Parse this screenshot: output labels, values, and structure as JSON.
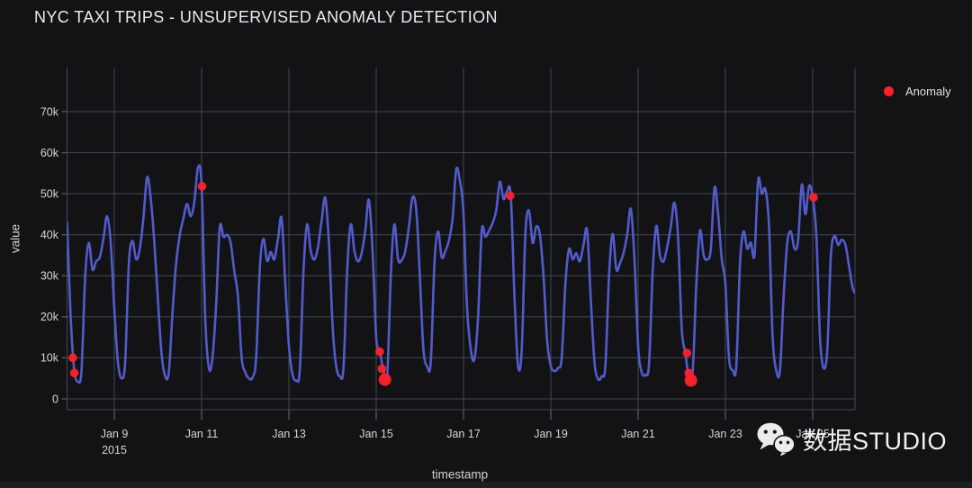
{
  "header": {
    "title": "NYC TAXI TRIPS - UNSUPERVISED ANOMALY DETECTION"
  },
  "legend": {
    "position": "top-right",
    "items": [
      {
        "label": "Anomaly",
        "color": "#ff2127",
        "marker": "circle"
      }
    ]
  },
  "axes": {
    "x_title": "timestamp",
    "y_title": "value"
  },
  "watermark": {
    "icon": "wechat-icon",
    "text": "数据STUDIO"
  },
  "chart_data": {
    "type": "line",
    "title": "NYC TAXI TRIPS - UNSUPERVISED ANOMALY DETECTION",
    "xlabel": "timestamp",
    "ylabel": "value",
    "x_unit": "day of January 2015 (fractional part = time of day)",
    "y_unit": "taxi trips per interval",
    "x_range": [
      7.92,
      26.0
    ],
    "y_range": [
      -2600,
      80800
    ],
    "grid": true,
    "legend_position": "top-right",
    "line_color": "#525bcb",
    "anomaly_color": "#ff2127",
    "grid_color": "#3e4a57",
    "x_ticks": [
      {
        "value": 9,
        "label": "Jan 9",
        "sublabel": "2015"
      },
      {
        "value": 11,
        "label": "Jan 11"
      },
      {
        "value": 13,
        "label": "Jan 13"
      },
      {
        "value": 15,
        "label": "Jan 15"
      },
      {
        "value": 17,
        "label": "Jan 17"
      },
      {
        "value": 19,
        "label": "Jan 19"
      },
      {
        "value": 21,
        "label": "Jan 21"
      },
      {
        "value": 23,
        "label": "Jan 23"
      },
      {
        "value": 25,
        "label": "Jan 25"
      }
    ],
    "y_ticks": [
      {
        "value": 0,
        "label": "0"
      },
      {
        "value": 10000,
        "label": "10k"
      },
      {
        "value": 20000,
        "label": "20k"
      },
      {
        "value": 30000,
        "label": "30k"
      },
      {
        "value": 40000,
        "label": "40k"
      },
      {
        "value": 50000,
        "label": "50k"
      },
      {
        "value": 60000,
        "label": "60k"
      },
      {
        "value": 70000,
        "label": "70k"
      }
    ],
    "series": [
      {
        "name": "value",
        "color": "#525bcb",
        "points": [
          [
            7.917,
            43000
          ],
          [
            8.0,
            20000
          ],
          [
            8.083,
            7000
          ],
          [
            8.167,
            4200
          ],
          [
            8.25,
            7000
          ],
          [
            8.333,
            30000
          ],
          [
            8.417,
            38000
          ],
          [
            8.5,
            31500
          ],
          [
            8.583,
            33500
          ],
          [
            8.667,
            34500
          ],
          [
            8.75,
            39000
          ],
          [
            8.833,
            44500
          ],
          [
            8.917,
            38000
          ],
          [
            9.0,
            22000
          ],
          [
            9.083,
            9000
          ],
          [
            9.167,
            5000
          ],
          [
            9.25,
            9000
          ],
          [
            9.333,
            33000
          ],
          [
            9.417,
            38500
          ],
          [
            9.5,
            34000
          ],
          [
            9.583,
            36500
          ],
          [
            9.667,
            44000
          ],
          [
            9.75,
            54000
          ],
          [
            9.833,
            49000
          ],
          [
            9.917,
            38000
          ],
          [
            10.0,
            24000
          ],
          [
            10.083,
            11000
          ],
          [
            10.167,
            5500
          ],
          [
            10.25,
            6500
          ],
          [
            10.333,
            21000
          ],
          [
            10.417,
            33000
          ],
          [
            10.5,
            40000
          ],
          [
            10.583,
            44000
          ],
          [
            10.667,
            47500
          ],
          [
            10.75,
            44500
          ],
          [
            10.833,
            48000
          ],
          [
            10.917,
            56400
          ],
          [
            11.0,
            52000
          ],
          [
            11.083,
            20000
          ],
          [
            11.167,
            7500
          ],
          [
            11.25,
            10000
          ],
          [
            11.333,
            23000
          ],
          [
            11.417,
            41800
          ],
          [
            11.5,
            39500
          ],
          [
            11.583,
            40000
          ],
          [
            11.667,
            38000
          ],
          [
            11.75,
            31000
          ],
          [
            11.833,
            25000
          ],
          [
            11.917,
            10000
          ],
          [
            12.0,
            6500
          ],
          [
            12.083,
            5000
          ],
          [
            12.167,
            5200
          ],
          [
            12.25,
            10000
          ],
          [
            12.333,
            32000
          ],
          [
            12.417,
            39000
          ],
          [
            12.5,
            33600
          ],
          [
            12.583,
            35800
          ],
          [
            12.667,
            34000
          ],
          [
            12.75,
            39000
          ],
          [
            12.833,
            44000
          ],
          [
            12.917,
            28000
          ],
          [
            13.0,
            13000
          ],
          [
            13.083,
            6000
          ],
          [
            13.167,
            4500
          ],
          [
            13.25,
            7000
          ],
          [
            13.333,
            31000
          ],
          [
            13.417,
            42500
          ],
          [
            13.5,
            36000
          ],
          [
            13.583,
            34000
          ],
          [
            13.667,
            37000
          ],
          [
            13.75,
            43500
          ],
          [
            13.833,
            49000
          ],
          [
            13.917,
            38000
          ],
          [
            14.0,
            18000
          ],
          [
            14.083,
            8000
          ],
          [
            14.167,
            5500
          ],
          [
            14.25,
            7500
          ],
          [
            14.333,
            31000
          ],
          [
            14.417,
            42500
          ],
          [
            14.5,
            36000
          ],
          [
            14.583,
            33500
          ],
          [
            14.667,
            35500
          ],
          [
            14.75,
            41000
          ],
          [
            14.833,
            48500
          ],
          [
            14.917,
            36000
          ],
          [
            15.0,
            15000
          ],
          [
            15.083,
            11500
          ],
          [
            15.167,
            6800
          ],
          [
            15.25,
            5000
          ],
          [
            15.333,
            30000
          ],
          [
            15.417,
            42500
          ],
          [
            15.5,
            34000
          ],
          [
            15.583,
            33800
          ],
          [
            15.667,
            36000
          ],
          [
            15.75,
            42000
          ],
          [
            15.833,
            49100
          ],
          [
            15.917,
            46000
          ],
          [
            16.0,
            30000
          ],
          [
            16.083,
            12000
          ],
          [
            16.167,
            7900
          ],
          [
            16.25,
            9000
          ],
          [
            16.333,
            33000
          ],
          [
            16.417,
            40800
          ],
          [
            16.5,
            34500
          ],
          [
            16.583,
            36000
          ],
          [
            16.667,
            38600
          ],
          [
            16.75,
            44000
          ],
          [
            16.833,
            55900
          ],
          [
            16.917,
            53100
          ],
          [
            17.0,
            45200
          ],
          [
            17.083,
            22000
          ],
          [
            17.167,
            12000
          ],
          [
            17.25,
            9700
          ],
          [
            17.333,
            20000
          ],
          [
            17.417,
            41000
          ],
          [
            17.5,
            39500
          ],
          [
            17.583,
            41000
          ],
          [
            17.667,
            42800
          ],
          [
            17.75,
            46000
          ],
          [
            17.833,
            52900
          ],
          [
            17.917,
            48700
          ],
          [
            18.0,
            50700
          ],
          [
            18.083,
            49500
          ],
          [
            18.167,
            25000
          ],
          [
            18.25,
            8000
          ],
          [
            18.333,
            12000
          ],
          [
            18.417,
            40000
          ],
          [
            18.5,
            45900
          ],
          [
            18.583,
            38000
          ],
          [
            18.667,
            42000
          ],
          [
            18.75,
            40000
          ],
          [
            18.833,
            30000
          ],
          [
            18.917,
            14000
          ],
          [
            19.0,
            8000
          ],
          [
            19.083,
            6800
          ],
          [
            19.167,
            7500
          ],
          [
            19.25,
            10000
          ],
          [
            19.333,
            28000
          ],
          [
            19.417,
            36500
          ],
          [
            19.5,
            34000
          ],
          [
            19.583,
            35500
          ],
          [
            19.667,
            33500
          ],
          [
            19.75,
            37500
          ],
          [
            19.833,
            41000
          ],
          [
            19.917,
            24000
          ],
          [
            20.0,
            9000
          ],
          [
            20.083,
            4800
          ],
          [
            20.167,
            5500
          ],
          [
            20.25,
            8000
          ],
          [
            20.333,
            30000
          ],
          [
            20.417,
            40200
          ],
          [
            20.5,
            31600
          ],
          [
            20.583,
            33000
          ],
          [
            20.667,
            35500
          ],
          [
            20.75,
            40000
          ],
          [
            20.833,
            46300
          ],
          [
            20.917,
            34000
          ],
          [
            21.0,
            13000
          ],
          [
            21.083,
            6500
          ],
          [
            21.167,
            5900
          ],
          [
            21.25,
            8500
          ],
          [
            21.333,
            31000
          ],
          [
            21.417,
            42100
          ],
          [
            21.5,
            35000
          ],
          [
            21.583,
            33500
          ],
          [
            21.667,
            37000
          ],
          [
            21.75,
            42000
          ],
          [
            21.833,
            47800
          ],
          [
            21.917,
            39000
          ],
          [
            22.0,
            17000
          ],
          [
            22.083,
            11200
          ],
          [
            22.167,
            5000
          ],
          [
            22.25,
            6500
          ],
          [
            22.333,
            28000
          ],
          [
            22.417,
            41000
          ],
          [
            22.5,
            35000
          ],
          [
            22.583,
            34000
          ],
          [
            22.667,
            36500
          ],
          [
            22.75,
            51500
          ],
          [
            22.833,
            45000
          ],
          [
            22.917,
            34000
          ],
          [
            23.0,
            28000
          ],
          [
            23.083,
            10000
          ],
          [
            23.167,
            7000
          ],
          [
            23.25,
            8000
          ],
          [
            23.333,
            33000
          ],
          [
            23.417,
            40800
          ],
          [
            23.5,
            36600
          ],
          [
            23.583,
            38100
          ],
          [
            23.667,
            35000
          ],
          [
            23.75,
            53300
          ],
          [
            23.833,
            50000
          ],
          [
            23.917,
            51000
          ],
          [
            24.0,
            42000
          ],
          [
            24.083,
            15000
          ],
          [
            24.167,
            6800
          ],
          [
            24.25,
            7000
          ],
          [
            24.333,
            25000
          ],
          [
            24.417,
            38000
          ],
          [
            24.5,
            40800
          ],
          [
            24.583,
            36600
          ],
          [
            24.667,
            38600
          ],
          [
            24.75,
            52200
          ],
          [
            24.833,
            45000
          ],
          [
            24.917,
            51900
          ],
          [
            25.0,
            49100
          ],
          [
            25.083,
            40000
          ],
          [
            25.167,
            15000
          ],
          [
            25.25,
            7500
          ],
          [
            25.333,
            12000
          ],
          [
            25.417,
            35000
          ],
          [
            25.5,
            39700
          ],
          [
            25.583,
            37500
          ],
          [
            25.667,
            38800
          ],
          [
            25.75,
            37500
          ],
          [
            25.833,
            32300
          ],
          [
            25.917,
            27000
          ],
          [
            26.0,
            25500
          ]
        ]
      }
    ],
    "anomaly_series": {
      "name": "Anomaly",
      "color": "#ff2127",
      "marker": "circle",
      "points_xyr": [
        [
          8.05,
          10000,
          4.8
        ],
        [
          8.085,
          6300,
          4.8
        ],
        [
          11.01,
          51800,
          4.8
        ],
        [
          15.08,
          11500,
          4.8
        ],
        [
          15.13,
          7300,
          4.8
        ],
        [
          15.2,
          4700,
          7.0
        ],
        [
          18.07,
          49500,
          4.8
        ],
        [
          22.12,
          11200,
          4.8
        ],
        [
          22.16,
          6300,
          4.8
        ],
        [
          22.21,
          4500,
          7.0
        ],
        [
          25.02,
          49100,
          4.8
        ]
      ]
    }
  }
}
